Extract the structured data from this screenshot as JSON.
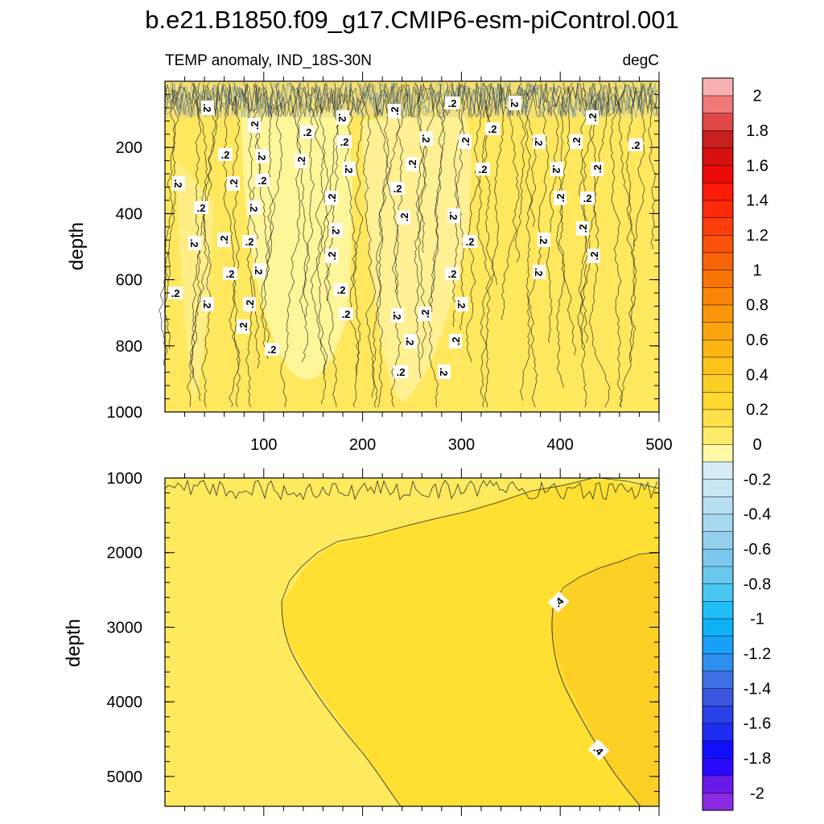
{
  "chart_data": {
    "type": "contour",
    "title": "b.e21.B1850.f09_g17.CMIP6-esm-piControl.001",
    "subtitle_left": "TEMP anomaly, IND_18S-30N",
    "subtitle_right": "degC",
    "x": {
      "range": [
        0,
        500
      ],
      "ticks": [
        100,
        200,
        300,
        400,
        500
      ]
    },
    "panels": [
      {
        "name": "upper",
        "ylabel": "depth",
        "ylim": [
          0,
          1000
        ],
        "yticks": [
          200,
          400,
          600,
          800,
          1000
        ],
        "contour_labels": [
          ".2",
          ".2",
          ".2",
          ".2",
          ".2",
          ".2",
          ".2",
          ".2",
          ".2",
          ".2",
          ".2",
          ".2",
          ".2",
          ".2",
          ".2",
          ".2",
          ".2",
          ".2",
          ".2",
          ".2",
          ".2",
          ".2",
          ".2",
          ".2",
          ".2",
          ".2",
          ".2",
          ".2",
          ".2",
          ".2",
          ".2",
          ".2",
          ".2",
          ".2",
          ".2",
          ".2",
          ".2",
          ".2",
          ".2",
          ".2",
          ".2",
          ".2",
          ".2",
          ".2",
          ".2",
          ".2",
          ".2",
          ".2",
          ".2",
          ".2",
          ".2",
          ".2",
          ".2",
          ".2",
          ".2",
          ".2",
          ".2",
          ".2",
          ".2",
          ".2",
          ".2"
        ]
      },
      {
        "name": "lower",
        "ylabel": "depth",
        "ylim": [
          1000,
          5400
        ],
        "yticks": [
          1000,
          2000,
          3000,
          4000,
          5000
        ],
        "contour_labels": [
          ".4",
          ".4"
        ]
      }
    ],
    "colorbar": {
      "units": "degC",
      "levels": [
        -2,
        -1.9,
        -1.8,
        -1.7,
        -1.6,
        -1.5,
        -1.4,
        -1.3,
        -1.2,
        -1.1,
        -1,
        -0.9,
        -0.8,
        -0.7,
        -0.6,
        -0.5,
        -0.4,
        -0.3,
        -0.2,
        -0.1,
        0,
        0.1,
        0.2,
        0.3,
        0.4,
        0.5,
        0.6,
        0.7,
        0.8,
        0.9,
        1,
        1.1,
        1.2,
        1.3,
        1.4,
        1.5,
        1.6,
        1.7,
        1.8,
        1.9,
        2
      ],
      "tick_labels": [
        "-2",
        "-1.8",
        "-1.6",
        "-1.4",
        "-1.2",
        "-1",
        "-0.8",
        "-0.6",
        "-0.4",
        "-0.2",
        "0",
        "0.2",
        "0.4",
        "0.6",
        "0.8",
        "1",
        "1.2",
        "1.4",
        "1.6",
        "1.8",
        "2"
      ],
      "colors": [
        "#8a2be2",
        "#6a1ae8",
        "#2a0aff",
        "#1010ff",
        "#1e2ef0",
        "#2a40e8",
        "#3a55e0",
        "#3f6fe4",
        "#2f8ff0",
        "#1aa0f8",
        "#10b0f8",
        "#20bff8",
        "#4ac6f2",
        "#6ac8f0",
        "#7cc8ee",
        "#94d0ee",
        "#a6d8ef",
        "#b6dff1",
        "#c6e6f3",
        "#d4ecf6",
        "#fff9a6",
        "#ffeb6a",
        "#ffe04a",
        "#ffd830",
        "#fccf26",
        "#fbc21c",
        "#fbb414",
        "#fba50e",
        "#fb960a",
        "#fa8508",
        "#f87406",
        "#f76408",
        "#fa520a",
        "#fb3f0c",
        "#fd2a0a",
        "#fc1a08",
        "#ea0a06",
        "#d61010",
        "#c82020",
        "#e04848",
        "#f07878",
        "#f8b0b0"
      ]
    }
  }
}
